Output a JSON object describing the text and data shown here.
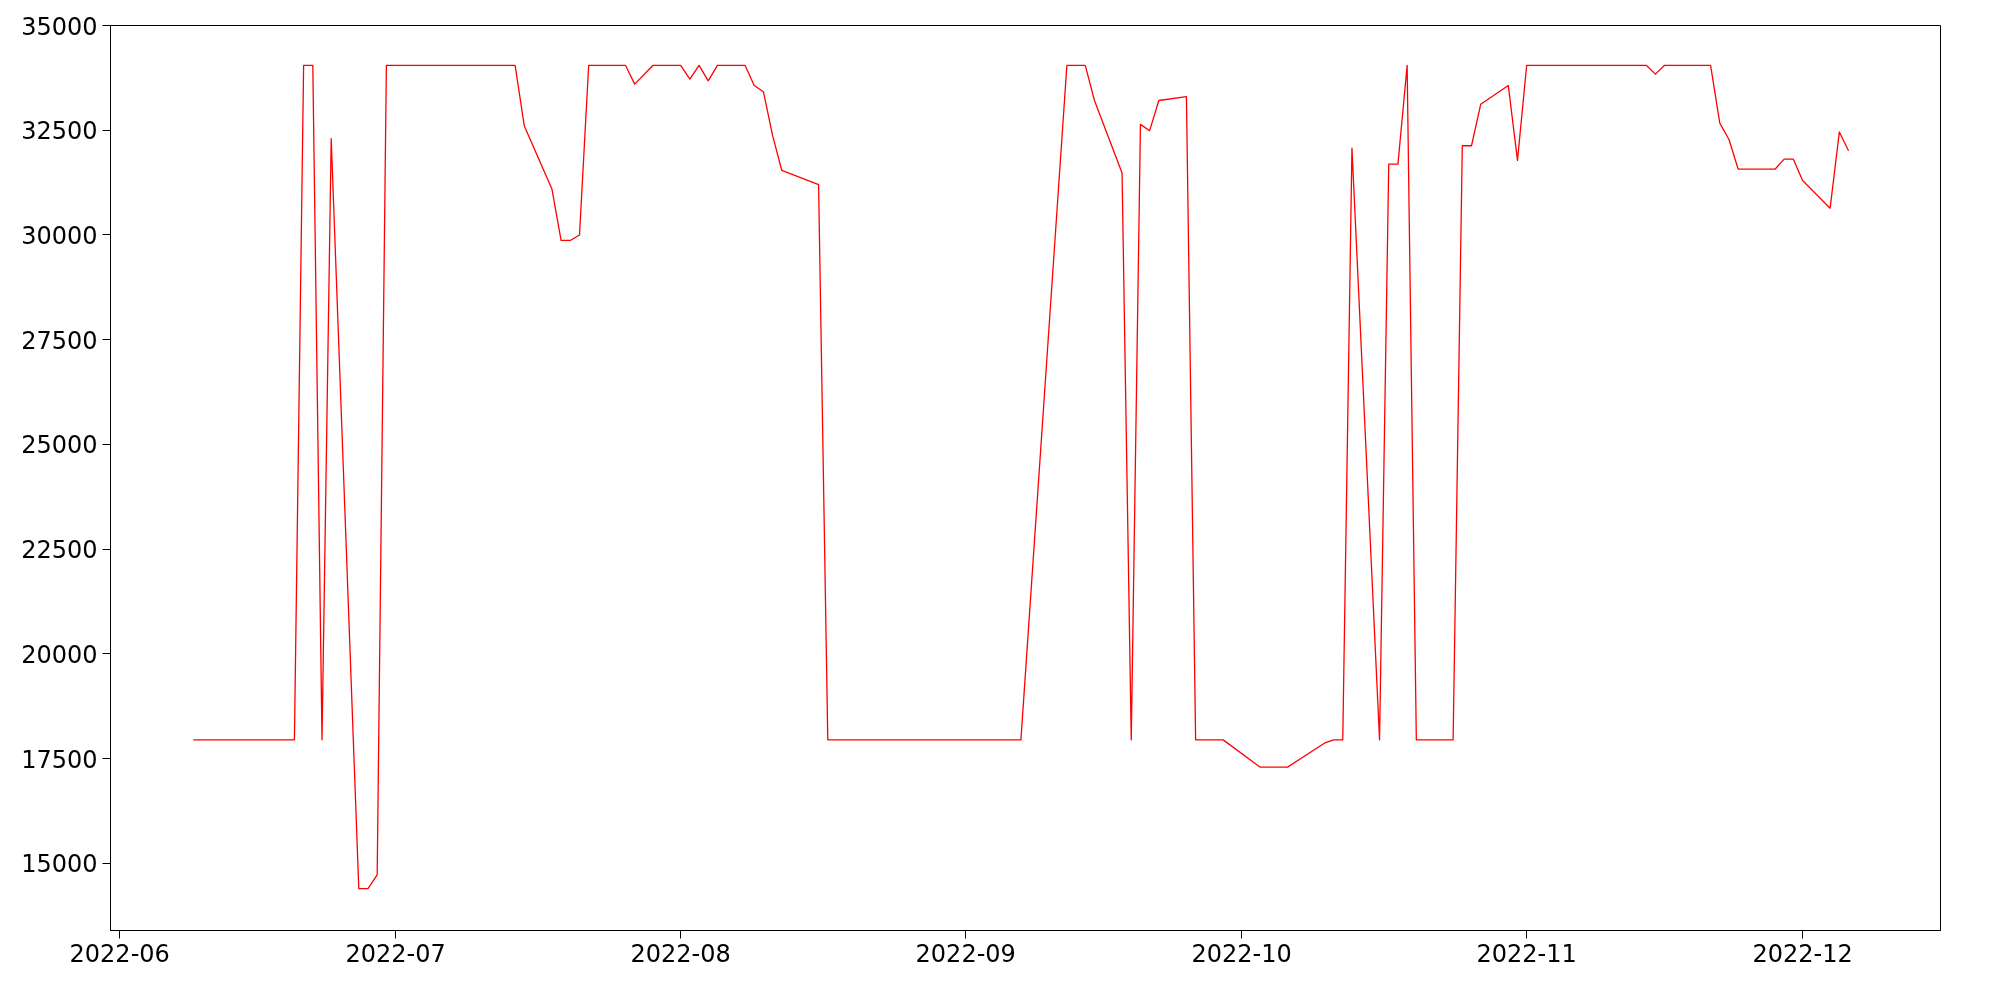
{
  "chart_data": {
    "type": "line",
    "grid": false,
    "marker": "none",
    "line_style": "solid",
    "x": [
      "2022-06-09",
      "2022-06-20",
      "2022-06-21",
      "2022-06-22",
      "2022-06-23",
      "2022-06-24",
      "2022-06-27",
      "2022-06-28",
      "2022-06-29",
      "2022-06-30",
      "2022-07-14",
      "2022-07-15",
      "2022-07-18",
      "2022-07-19",
      "2022-07-20",
      "2022-07-21",
      "2022-07-22",
      "2022-07-26",
      "2022-07-27",
      "2022-07-29",
      "2022-08-01",
      "2022-08-02",
      "2022-08-03",
      "2022-08-04",
      "2022-08-05",
      "2022-08-08",
      "2022-08-09",
      "2022-08-10",
      "2022-08-11",
      "2022-08-12",
      "2022-08-16",
      "2022-08-17",
      "2022-09-07",
      "2022-09-12",
      "2022-09-14",
      "2022-09-15",
      "2022-09-18",
      "2022-09-19",
      "2022-09-20",
      "2022-09-21",
      "2022-09-22",
      "2022-09-25",
      "2022-09-26",
      "2022-09-29",
      "2022-10-03",
      "2022-10-06",
      "2022-10-10",
      "2022-10-11",
      "2022-10-12",
      "2022-10-13",
      "2022-10-16",
      "2022-10-17",
      "2022-10-18",
      "2022-10-19",
      "2022-10-20",
      "2022-10-24",
      "2022-10-25",
      "2022-10-26",
      "2022-10-27",
      "2022-10-30",
      "2022-10-31",
      "2022-11-01",
      "2022-11-14",
      "2022-11-15",
      "2022-11-16",
      "2022-11-21",
      "2022-11-22",
      "2022-11-23",
      "2022-11-24",
      "2022-11-28",
      "2022-11-29",
      "2022-11-30",
      "2022-12-01",
      "2022-12-04",
      "2022-12-05",
      "2022-12-06"
    ],
    "series": [
      {
        "color": "#ff0000",
        "values": [
          17950,
          17950,
          34050,
          34050,
          17950,
          32300,
          14400,
          14400,
          14730,
          34050,
          34050,
          32600,
          31100,
          29870,
          29870,
          30000,
          34050,
          34050,
          33600,
          34050,
          34050,
          33720,
          34050,
          33680,
          34050,
          34050,
          33570,
          33420,
          32370,
          31540,
          31200,
          17950,
          17950,
          34050,
          34050,
          33210,
          31480,
          17950,
          32640,
          32490,
          33210,
          33300,
          17950,
          17950,
          17300,
          17300,
          17870,
          17950,
          17950,
          32070,
          17950,
          31690,
          31690,
          34050,
          17950,
          17950,
          32130,
          32130,
          33120,
          33570,
          31780,
          34050,
          34050,
          33840,
          34050,
          34050,
          32670,
          32280,
          31570,
          31570,
          31810,
          31810,
          31300,
          30640,
          32460,
          32010
        ]
      }
    ],
    "xlim": [
      "2022-05-31",
      "2022-12-16"
    ],
    "xticks": [
      {
        "value": "2022-06-01",
        "label": "2022-06"
      },
      {
        "value": "2022-07-01",
        "label": "2022-07"
      },
      {
        "value": "2022-08-01",
        "label": "2022-08"
      },
      {
        "value": "2022-09-01",
        "label": "2022-09"
      },
      {
        "value": "2022-10-01",
        "label": "2022-10"
      },
      {
        "value": "2022-11-01",
        "label": "2022-11"
      },
      {
        "value": "2022-12-01",
        "label": "2022-12"
      }
    ],
    "ylim": [
      13400,
      35000
    ],
    "yticks": [
      15000,
      17500,
      20000,
      22500,
      25000,
      27500,
      30000,
      32500,
      35000
    ]
  }
}
